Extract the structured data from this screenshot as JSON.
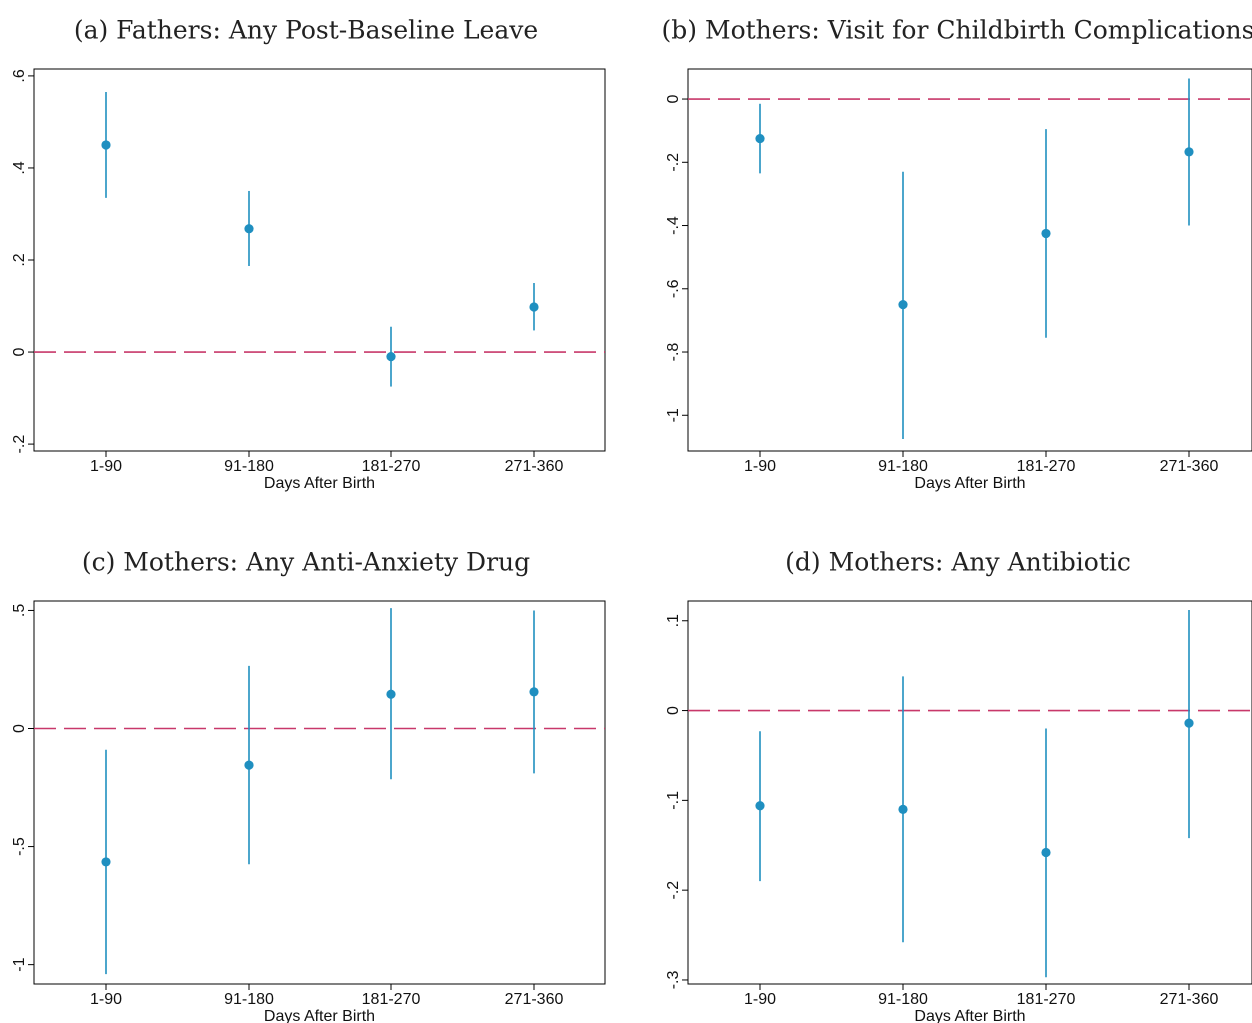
{
  "figure": {
    "colors": {
      "point": "#1f8fc0",
      "ci": "#1f8fc0",
      "reference": "#c8386a",
      "axis": "#000000"
    }
  },
  "chart_data": [
    {
      "type": "scatter",
      "title": "(a) Fathers: Any Post-Baseline Leave",
      "xlabel": "Days After Birth",
      "ylabel": "",
      "categories": [
        "1-90",
        "91-180",
        "181-270",
        "271-360"
      ],
      "estimate": [
        0.45,
        0.268,
        -0.01,
        0.098
      ],
      "ci_low": [
        0.335,
        0.187,
        -0.075,
        0.047
      ],
      "ci_high": [
        0.565,
        0.35,
        0.055,
        0.15
      ],
      "yticks": [
        0.6,
        0.4,
        0.2,
        0,
        -0.2
      ],
      "ytick_labels": [
        ".6",
        ".4",
        ".2",
        "0",
        "-.2"
      ],
      "ylim": [
        -0.215,
        0.615
      ],
      "reference_line": 0,
      "grid": false
    },
    {
      "type": "scatter",
      "title": "(b) Mothers: Visit for Childbirth Complications",
      "xlabel": "Days After Birth",
      "ylabel": "",
      "categories": [
        "1-90",
        "91-180",
        "181-270",
        "271-360"
      ],
      "estimate": [
        -0.125,
        -0.65,
        -0.425,
        -0.167
      ],
      "ci_low": [
        -0.235,
        -1.075,
        -0.755,
        -0.4
      ],
      "ci_high": [
        -0.015,
        -0.23,
        -0.095,
        0.065
      ],
      "yticks": [
        0,
        -0.2,
        -0.4,
        -0.6,
        -0.8,
        -1
      ],
      "ytick_labels": [
        "0",
        "-.2",
        "-.4",
        "-.6",
        "-.8",
        "-1"
      ],
      "ylim": [
        -1.113,
        0.095
      ],
      "reference_line": 0,
      "grid": false
    },
    {
      "type": "scatter",
      "title": "(c) Mothers: Any Anti-Anxiety Drug",
      "xlabel": "Days After Birth",
      "ylabel": "",
      "categories": [
        "1-90",
        "91-180",
        "181-270",
        "271-360"
      ],
      "estimate": [
        -0.565,
        -0.155,
        0.145,
        0.155
      ],
      "ci_low": [
        -1.04,
        -0.575,
        -0.215,
        -0.19
      ],
      "ci_high": [
        -0.09,
        0.265,
        0.51,
        0.5
      ],
      "yticks": [
        0.5,
        0,
        -0.5,
        -1
      ],
      "ytick_labels": [
        ".5",
        "0",
        "-.5",
        "-1"
      ],
      "ylim": [
        -1.082,
        0.54
      ],
      "reference_line": 0,
      "grid": false
    },
    {
      "type": "scatter",
      "title": "(d) Mothers: Any Antibiotic",
      "xlabel": "Days After Birth",
      "ylabel": "",
      "categories": [
        "1-90",
        "91-180",
        "181-270",
        "271-360"
      ],
      "estimate": [
        -0.106,
        -0.11,
        -0.158,
        -0.014
      ],
      "ci_low": [
        -0.19,
        -0.258,
        -0.297,
        -0.142
      ],
      "ci_high": [
        -0.023,
        0.038,
        -0.02,
        0.112
      ],
      "yticks": [
        0.1,
        0,
        -0.1,
        -0.2,
        -0.3
      ],
      "ytick_labels": [
        ".1",
        "0",
        "-.1",
        "-.2",
        "-.3"
      ],
      "ylim": [
        -0.3045,
        0.122
      ],
      "reference_line": 0,
      "grid": false
    }
  ]
}
